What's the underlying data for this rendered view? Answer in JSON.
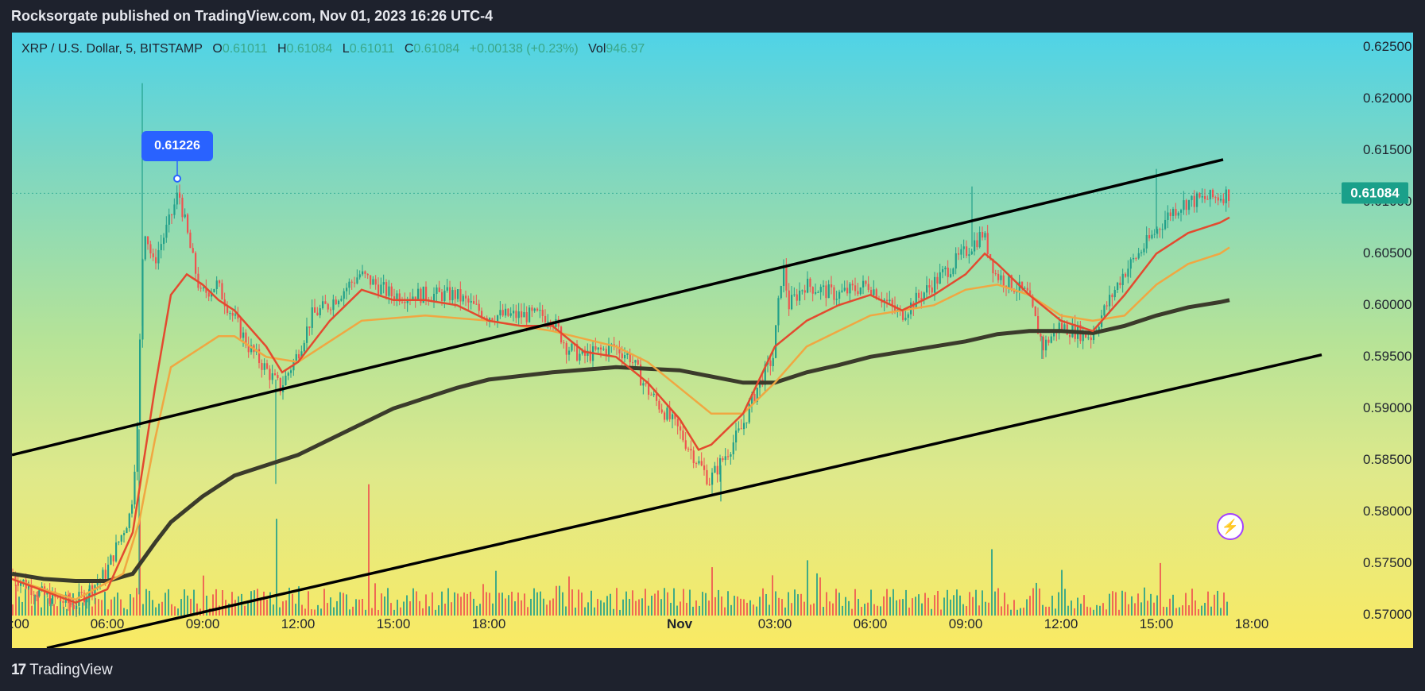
{
  "header": {
    "published_line": "Rocksorgate published on TradingView.com, Nov 01, 2023 16:26 UTC-4"
  },
  "legend": {
    "symbol": "XRP / U.S. Dollar, 5, BITSTAMP",
    "o_label": "O",
    "o_value": "0.61011",
    "h_label": "H",
    "h_value": "0.61084",
    "l_label": "L",
    "l_value": "0.61011",
    "c_label": "C",
    "c_value": "0.61084",
    "change": "+0.00138 (+0.23%)",
    "vol_label": "Vol",
    "vol_value": "946.97"
  },
  "last_price_label": "0.61084",
  "callout_label": "0.61226",
  "footer": {
    "logo_mark": "17",
    "brand": "TradingView"
  },
  "colors": {
    "up": "#22a08a",
    "down": "#ef5350",
    "ema_fast": "#e34a2f",
    "ema_mid": "#f0a742",
    "ema_slow": "#3b3b2b",
    "channel": "#000000",
    "callout": "#2962ff"
  },
  "chart_data": {
    "type": "candlestick",
    "symbol": "XRP / U.S. Dollar",
    "interval": "5",
    "exchange": "BITSTAMP",
    "y_ticks": [
      "0.62500",
      "0.62000",
      "0.61500",
      "0.61000",
      "0.60500",
      "0.60000",
      "0.59500",
      "0.59000",
      "0.58500",
      "0.58000",
      "0.57500",
      "0.57000"
    ],
    "x_ticks": [
      {
        "label": ":00",
        "h": 3
      },
      {
        "label": "06:00",
        "h": 6
      },
      {
        "label": "09:00",
        "h": 9
      },
      {
        "label": "12:00",
        "h": 12
      },
      {
        "label": "15:00",
        "h": 15
      },
      {
        "label": "18:00",
        "h": 18
      },
      {
        "label": "Nov",
        "h": 24
      },
      {
        "label": "03:00",
        "h": 27
      },
      {
        "label": "06:00",
        "h": 30
      },
      {
        "label": "09:00",
        "h": 33
      },
      {
        "label": "12:00",
        "h": 36
      },
      {
        "label": "15:00",
        "h": 39
      },
      {
        "label": "18:00",
        "h": 42
      }
    ],
    "ylim": [
      0.5668,
      0.6264
    ],
    "xlim_hours": [
      3,
      45
    ],
    "last_price": 0.61084,
    "marked_high": {
      "h": 8.2,
      "price": 0.61226,
      "label": "0.61226"
    },
    "channel_upper": {
      "p1": {
        "h": 3,
        "price": 0.5855
      },
      "p2": {
        "h": 41.1,
        "price": 0.6141
      }
    },
    "channel_lower": {
      "p1": {
        "h": 4.1,
        "price": 0.5668
      },
      "p2": {
        "h": 44.2,
        "price": 0.5952
      }
    },
    "price_path": [
      [
        3,
        0.574
      ],
      [
        4,
        0.572
      ],
      [
        5,
        0.571
      ],
      [
        6,
        0.574
      ],
      [
        6.8,
        0.58
      ],
      [
        7,
        0.588
      ],
      [
        7.2,
        0.608
      ],
      [
        7.5,
        0.604
      ],
      [
        8,
        0.608
      ],
      [
        8.3,
        0.611
      ],
      [
        8.7,
        0.605
      ],
      [
        9,
        0.601
      ],
      [
        9.5,
        0.602
      ],
      [
        10,
        0.599
      ],
      [
        10.5,
        0.596
      ],
      [
        11,
        0.594
      ],
      [
        11.5,
        0.592
      ],
      [
        12,
        0.595
      ],
      [
        12.5,
        0.599
      ],
      [
        13,
        0.6
      ],
      [
        14,
        0.603
      ],
      [
        15,
        0.601
      ],
      [
        16,
        0.601
      ],
      [
        17,
        0.601
      ],
      [
        18,
        0.599
      ],
      [
        19,
        0.599
      ],
      [
        20,
        0.599
      ],
      [
        20.5,
        0.596
      ],
      [
        21,
        0.595
      ],
      [
        22,
        0.596
      ],
      [
        22.5,
        0.595
      ],
      [
        23,
        0.592
      ],
      [
        24,
        0.588
      ],
      [
        25,
        0.583
      ],
      [
        26,
        0.588
      ],
      [
        26.5,
        0.592
      ],
      [
        27,
        0.595
      ],
      [
        27.3,
        0.604
      ],
      [
        27.5,
        0.6
      ],
      [
        28,
        0.602
      ],
      [
        29,
        0.601
      ],
      [
        30,
        0.602
      ],
      [
        31,
        0.599
      ],
      [
        32,
        0.602
      ],
      [
        33,
        0.605
      ],
      [
        33.6,
        0.607
      ],
      [
        34,
        0.603
      ],
      [
        35,
        0.601
      ],
      [
        35.5,
        0.596
      ],
      [
        36,
        0.598
      ],
      [
        37,
        0.597
      ],
      [
        38,
        0.603
      ],
      [
        39,
        0.607
      ],
      [
        39.5,
        0.609
      ],
      [
        40,
        0.61
      ],
      [
        41,
        0.6105
      ],
      [
        41.3,
        0.6108
      ]
    ],
    "ema_fast": [
      [
        3,
        0.5735
      ],
      [
        5,
        0.5712
      ],
      [
        6,
        0.5725
      ],
      [
        6.8,
        0.578
      ],
      [
        7.5,
        0.592
      ],
      [
        8,
        0.601
      ],
      [
        8.5,
        0.603
      ],
      [
        9,
        0.602
      ],
      [
        9.5,
        0.6005
      ],
      [
        10,
        0.5995
      ],
      [
        11,
        0.596
      ],
      [
        11.5,
        0.5935
      ],
      [
        12,
        0.5945
      ],
      [
        13,
        0.5985
      ],
      [
        14,
        0.6015
      ],
      [
        15,
        0.6005
      ],
      [
        16,
        0.6005
      ],
      [
        17,
        0.6
      ],
      [
        18,
        0.5985
      ],
      [
        19,
        0.598
      ],
      [
        20,
        0.598
      ],
      [
        21,
        0.5955
      ],
      [
        22,
        0.595
      ],
      [
        23,
        0.5925
      ],
      [
        24,
        0.589
      ],
      [
        24.6,
        0.586
      ],
      [
        25,
        0.5865
      ],
      [
        26,
        0.5895
      ],
      [
        27,
        0.596
      ],
      [
        28,
        0.5985
      ],
      [
        29,
        0.6
      ],
      [
        30,
        0.601
      ],
      [
        31,
        0.5995
      ],
      [
        32,
        0.601
      ],
      [
        33,
        0.603
      ],
      [
        33.6,
        0.605
      ],
      [
        34,
        0.604
      ],
      [
        35,
        0.601
      ],
      [
        36,
        0.5985
      ],
      [
        37,
        0.5975
      ],
      [
        38,
        0.601
      ],
      [
        39,
        0.605
      ],
      [
        40,
        0.607
      ],
      [
        41,
        0.608
      ],
      [
        41.3,
        0.6085
      ]
    ],
    "ema_mid": [
      [
        3,
        0.5735
      ],
      [
        5,
        0.5715
      ],
      [
        6.5,
        0.574
      ],
      [
        7,
        0.579
      ],
      [
        7.5,
        0.587
      ],
      [
        8,
        0.594
      ],
      [
        9,
        0.596
      ],
      [
        9.5,
        0.597
      ],
      [
        10,
        0.597
      ],
      [
        11,
        0.595
      ],
      [
        12,
        0.5945
      ],
      [
        13,
        0.5965
      ],
      [
        14,
        0.5985
      ],
      [
        16,
        0.599
      ],
      [
        18,
        0.5985
      ],
      [
        20,
        0.5975
      ],
      [
        22,
        0.596
      ],
      [
        23,
        0.5945
      ],
      [
        24,
        0.592
      ],
      [
        25,
        0.5895
      ],
      [
        26,
        0.5895
      ],
      [
        27,
        0.5925
      ],
      [
        28,
        0.596
      ],
      [
        29,
        0.5975
      ],
      [
        30,
        0.599
      ],
      [
        32,
        0.6
      ],
      [
        33,
        0.6015
      ],
      [
        34,
        0.602
      ],
      [
        35,
        0.601
      ],
      [
        36,
        0.599
      ],
      [
        37,
        0.5985
      ],
      [
        38,
        0.599
      ],
      [
        39,
        0.602
      ],
      [
        40,
        0.604
      ],
      [
        41,
        0.605
      ],
      [
        41.3,
        0.6056
      ]
    ],
    "ema_slow": [
      [
        3,
        0.574
      ],
      [
        4,
        0.5735
      ],
      [
        5,
        0.5733
      ],
      [
        6,
        0.5733
      ],
      [
        6.8,
        0.574
      ],
      [
        7.5,
        0.577
      ],
      [
        8,
        0.579
      ],
      [
        9,
        0.5815
      ],
      [
        10,
        0.5835
      ],
      [
        11,
        0.5845
      ],
      [
        12,
        0.5855
      ],
      [
        13,
        0.587
      ],
      [
        14,
        0.5885
      ],
      [
        15,
        0.59
      ],
      [
        16,
        0.591
      ],
      [
        17,
        0.592
      ],
      [
        18,
        0.5928
      ],
      [
        20,
        0.5935
      ],
      [
        22,
        0.594
      ],
      [
        24,
        0.5937
      ],
      [
        26,
        0.5925
      ],
      [
        27,
        0.5925
      ],
      [
        28,
        0.5935
      ],
      [
        29,
        0.5942
      ],
      [
        30,
        0.595
      ],
      [
        31,
        0.5955
      ],
      [
        32,
        0.596
      ],
      [
        33,
        0.5965
      ],
      [
        34,
        0.5972
      ],
      [
        35,
        0.5975
      ],
      [
        36,
        0.5975
      ],
      [
        37,
        0.5973
      ],
      [
        38,
        0.598
      ],
      [
        39,
        0.599
      ],
      [
        40,
        0.5998
      ],
      [
        41,
        0.6003
      ],
      [
        41.3,
        0.6005
      ]
    ],
    "volume": {
      "max_units": 100,
      "spikes": [
        {
          "h": 7.0,
          "v": 70
        },
        {
          "h": 14.2,
          "v": 95
        },
        {
          "h": 11.3,
          "v": 70
        },
        {
          "h": 33.8,
          "v": 48
        },
        {
          "h": 39.1,
          "v": 38
        },
        {
          "h": 28.0,
          "v": 40
        },
        {
          "h": 25.0,
          "v": 35
        },
        {
          "h": 36.0,
          "v": 33
        }
      ]
    },
    "lines": [
      {
        "name": "",
        "role": "fast moving average"
      },
      {
        "name": "",
        "role": "medium moving average"
      },
      {
        "name": "",
        "role": "slow moving average"
      }
    ]
  }
}
